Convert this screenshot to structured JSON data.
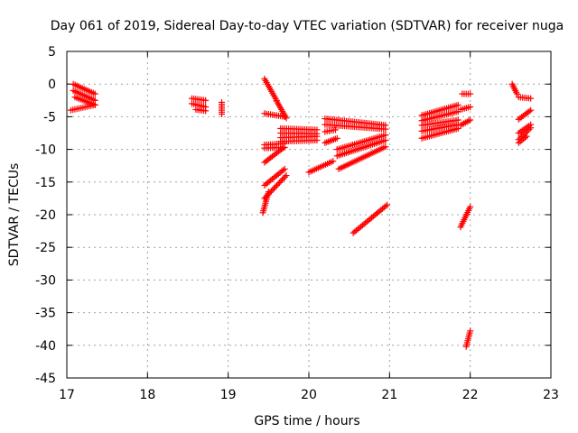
{
  "chart_data": {
    "type": "scatter",
    "title": "Day 061 of 2019, Sidereal Day-to-day VTEC variation (SDTVAR) for receiver nuga",
    "xlabel": "GPS time / hours",
    "ylabel": "SDTVAR / TECUs",
    "xlim": [
      17,
      23
    ],
    "ylim": [
      -45,
      5
    ],
    "xticks": [
      17,
      18,
      19,
      20,
      21,
      22,
      23
    ],
    "yticks": [
      5,
      0,
      -5,
      -10,
      -15,
      -20,
      -25,
      -30,
      -35,
      -40,
      -45
    ],
    "grid": true,
    "marker": "+",
    "color": "#ff0000",
    "series_segments": [
      {
        "x": [
          17.08,
          17.35
        ],
        "y": [
          0.0,
          -1.5
        ]
      },
      {
        "x": [
          17.08,
          17.35
        ],
        "y": [
          -1.0,
          -2.5
        ]
      },
      {
        "x": [
          17.1,
          17.35
        ],
        "y": [
          -2.0,
          -3.2
        ]
      },
      {
        "x": [
          17.05,
          17.35
        ],
        "y": [
          -4.0,
          -3.2
        ]
      },
      {
        "x": [
          18.55,
          18.72
        ],
        "y": [
          -2.2,
          -2.5
        ]
      },
      {
        "x": [
          18.55,
          18.72
        ],
        "y": [
          -3.0,
          -3.5
        ]
      },
      {
        "x": [
          18.6,
          18.72
        ],
        "y": [
          -3.9,
          -4.1
        ]
      },
      {
        "x": [
          18.92,
          18.92
        ],
        "y": [
          -2.8,
          -4.6
        ]
      },
      {
        "x": [
          19.45,
          19.6
        ],
        "y": [
          0.8,
          -2.5
        ]
      },
      {
        "x": [
          19.6,
          19.72
        ],
        "y": [
          -2.6,
          -5.2
        ]
      },
      {
        "x": [
          19.45,
          19.7
        ],
        "y": [
          -4.5,
          -5.0
        ]
      },
      {
        "x": [
          19.45,
          19.7
        ],
        "y": [
          -9.3,
          -9.1
        ]
      },
      {
        "x": [
          19.45,
          19.7
        ],
        "y": [
          -9.8,
          -9.7
        ]
      },
      {
        "x": [
          19.45,
          19.68
        ],
        "y": [
          -12.0,
          -9.8
        ]
      },
      {
        "x": [
          19.45,
          19.7
        ],
        "y": [
          -15.5,
          -13.0
        ]
      },
      {
        "x": [
          19.45,
          19.72
        ],
        "y": [
          -17.5,
          -14.0
        ]
      },
      {
        "x": [
          19.43,
          19.5
        ],
        "y": [
          -19.7,
          -16.5
        ]
      },
      {
        "x": [
          19.65,
          20.1
        ],
        "y": [
          -6.8,
          -7.0
        ]
      },
      {
        "x": [
          19.65,
          20.1
        ],
        "y": [
          -7.5,
          -7.6
        ]
      },
      {
        "x": [
          19.65,
          20.1
        ],
        "y": [
          -8.2,
          -8.0
        ]
      },
      {
        "x": [
          19.65,
          20.1
        ],
        "y": [
          -8.8,
          -8.6
        ]
      },
      {
        "x": [
          20.2,
          20.95
        ],
        "y": [
          -5.3,
          -6.3
        ]
      },
      {
        "x": [
          20.2,
          20.95
        ],
        "y": [
          -6.2,
          -6.9
        ]
      },
      {
        "x": [
          20.2,
          20.33
        ],
        "y": [
          -7.3,
          -7.0
        ]
      },
      {
        "x": [
          20.2,
          20.35
        ],
        "y": [
          -9.0,
          -8.3
        ]
      },
      {
        "x": [
          20.35,
          20.95
        ],
        "y": [
          -10.0,
          -7.8
        ]
      },
      {
        "x": [
          20.35,
          20.95
        ],
        "y": [
          -11.0,
          -8.6
        ]
      },
      {
        "x": [
          20.37,
          20.95
        ],
        "y": [
          -13.0,
          -9.6
        ]
      },
      {
        "x": [
          20.0,
          20.3
        ],
        "y": [
          -13.5,
          -11.8
        ]
      },
      {
        "x": [
          20.55,
          20.97
        ],
        "y": [
          -22.8,
          -18.5
        ]
      },
      {
        "x": [
          21.4,
          21.85
        ],
        "y": [
          -4.8,
          -3.2
        ]
      },
      {
        "x": [
          21.4,
          21.85
        ],
        "y": [
          -5.6,
          -4.2
        ]
      },
      {
        "x": [
          21.4,
          21.85
        ],
        "y": [
          -6.3,
          -5.5
        ]
      },
      {
        "x": [
          21.4,
          21.85
        ],
        "y": [
          -7.2,
          -6.2
        ]
      },
      {
        "x": [
          21.4,
          21.85
        ],
        "y": [
          -8.3,
          -6.8
        ]
      },
      {
        "x": [
          21.9,
          22.0
        ],
        "y": [
          -1.5,
          -1.5
        ]
      },
      {
        "x": [
          21.88,
          22.0
        ],
        "y": [
          -3.9,
          -3.5
        ]
      },
      {
        "x": [
          21.88,
          22.0
        ],
        "y": [
          -6.3,
          -5.5
        ]
      },
      {
        "x": [
          21.88,
          22.0
        ],
        "y": [
          -21.9,
          -18.8
        ]
      },
      {
        "x": [
          21.95,
          22.0
        ],
        "y": [
          -40.2,
          -37.8
        ]
      },
      {
        "x": [
          22.52,
          22.58
        ],
        "y": [
          0.0,
          -1.5
        ]
      },
      {
        "x": [
          22.6,
          22.75
        ],
        "y": [
          -2.0,
          -2.2
        ]
      },
      {
        "x": [
          22.6,
          22.75
        ],
        "y": [
          -5.4,
          -4.0
        ]
      },
      {
        "x": [
          22.6,
          22.75
        ],
        "y": [
          -7.5,
          -6.2
        ]
      },
      {
        "x": [
          22.6,
          22.75
        ],
        "y": [
          -8.5,
          -6.7
        ]
      },
      {
        "x": [
          22.6,
          22.7
        ],
        "y": [
          -9.0,
          -8.0
        ]
      }
    ]
  }
}
